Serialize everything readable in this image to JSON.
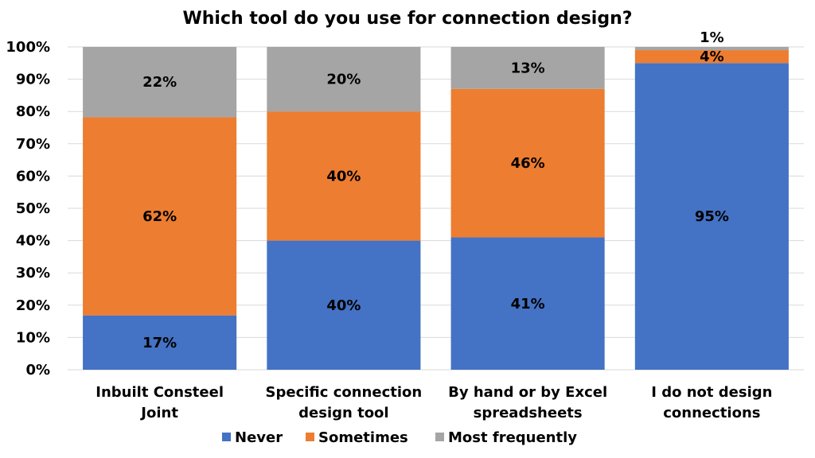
{
  "chart_data": {
    "type": "bar",
    "stacked": true,
    "percent_stacked": true,
    "title": "Which tool do you use for connection design?",
    "categories": [
      [
        "Inbuilt Consteel",
        "Joint"
      ],
      [
        "Specific connection",
        "design tool"
      ],
      [
        "By hand or by Excel",
        "spreadsheets"
      ],
      [
        "I do not design",
        "connections"
      ]
    ],
    "series": [
      {
        "name": "Never",
        "color": "#4472C4",
        "values": [
          17,
          40,
          41,
          95
        ],
        "labels": [
          "17%",
          "40%",
          "41%",
          "95%"
        ]
      },
      {
        "name": "Sometimes",
        "color": "#ED7D31",
        "values": [
          62,
          40,
          46,
          4
        ],
        "labels": [
          "62%",
          "40%",
          "46%",
          "4%"
        ]
      },
      {
        "name": "Most frequently",
        "color": "#A5A5A5",
        "values": [
          22,
          20,
          13,
          1
        ],
        "labels": [
          "22%",
          "20%",
          "13%",
          "1%"
        ]
      }
    ],
    "ylim": [
      0,
      100
    ],
    "yticks": [
      "0%",
      "10%",
      "20%",
      "30%",
      "40%",
      "50%",
      "60%",
      "70%",
      "80%",
      "90%",
      "100%"
    ],
    "grid": true,
    "legend": "bottom"
  }
}
